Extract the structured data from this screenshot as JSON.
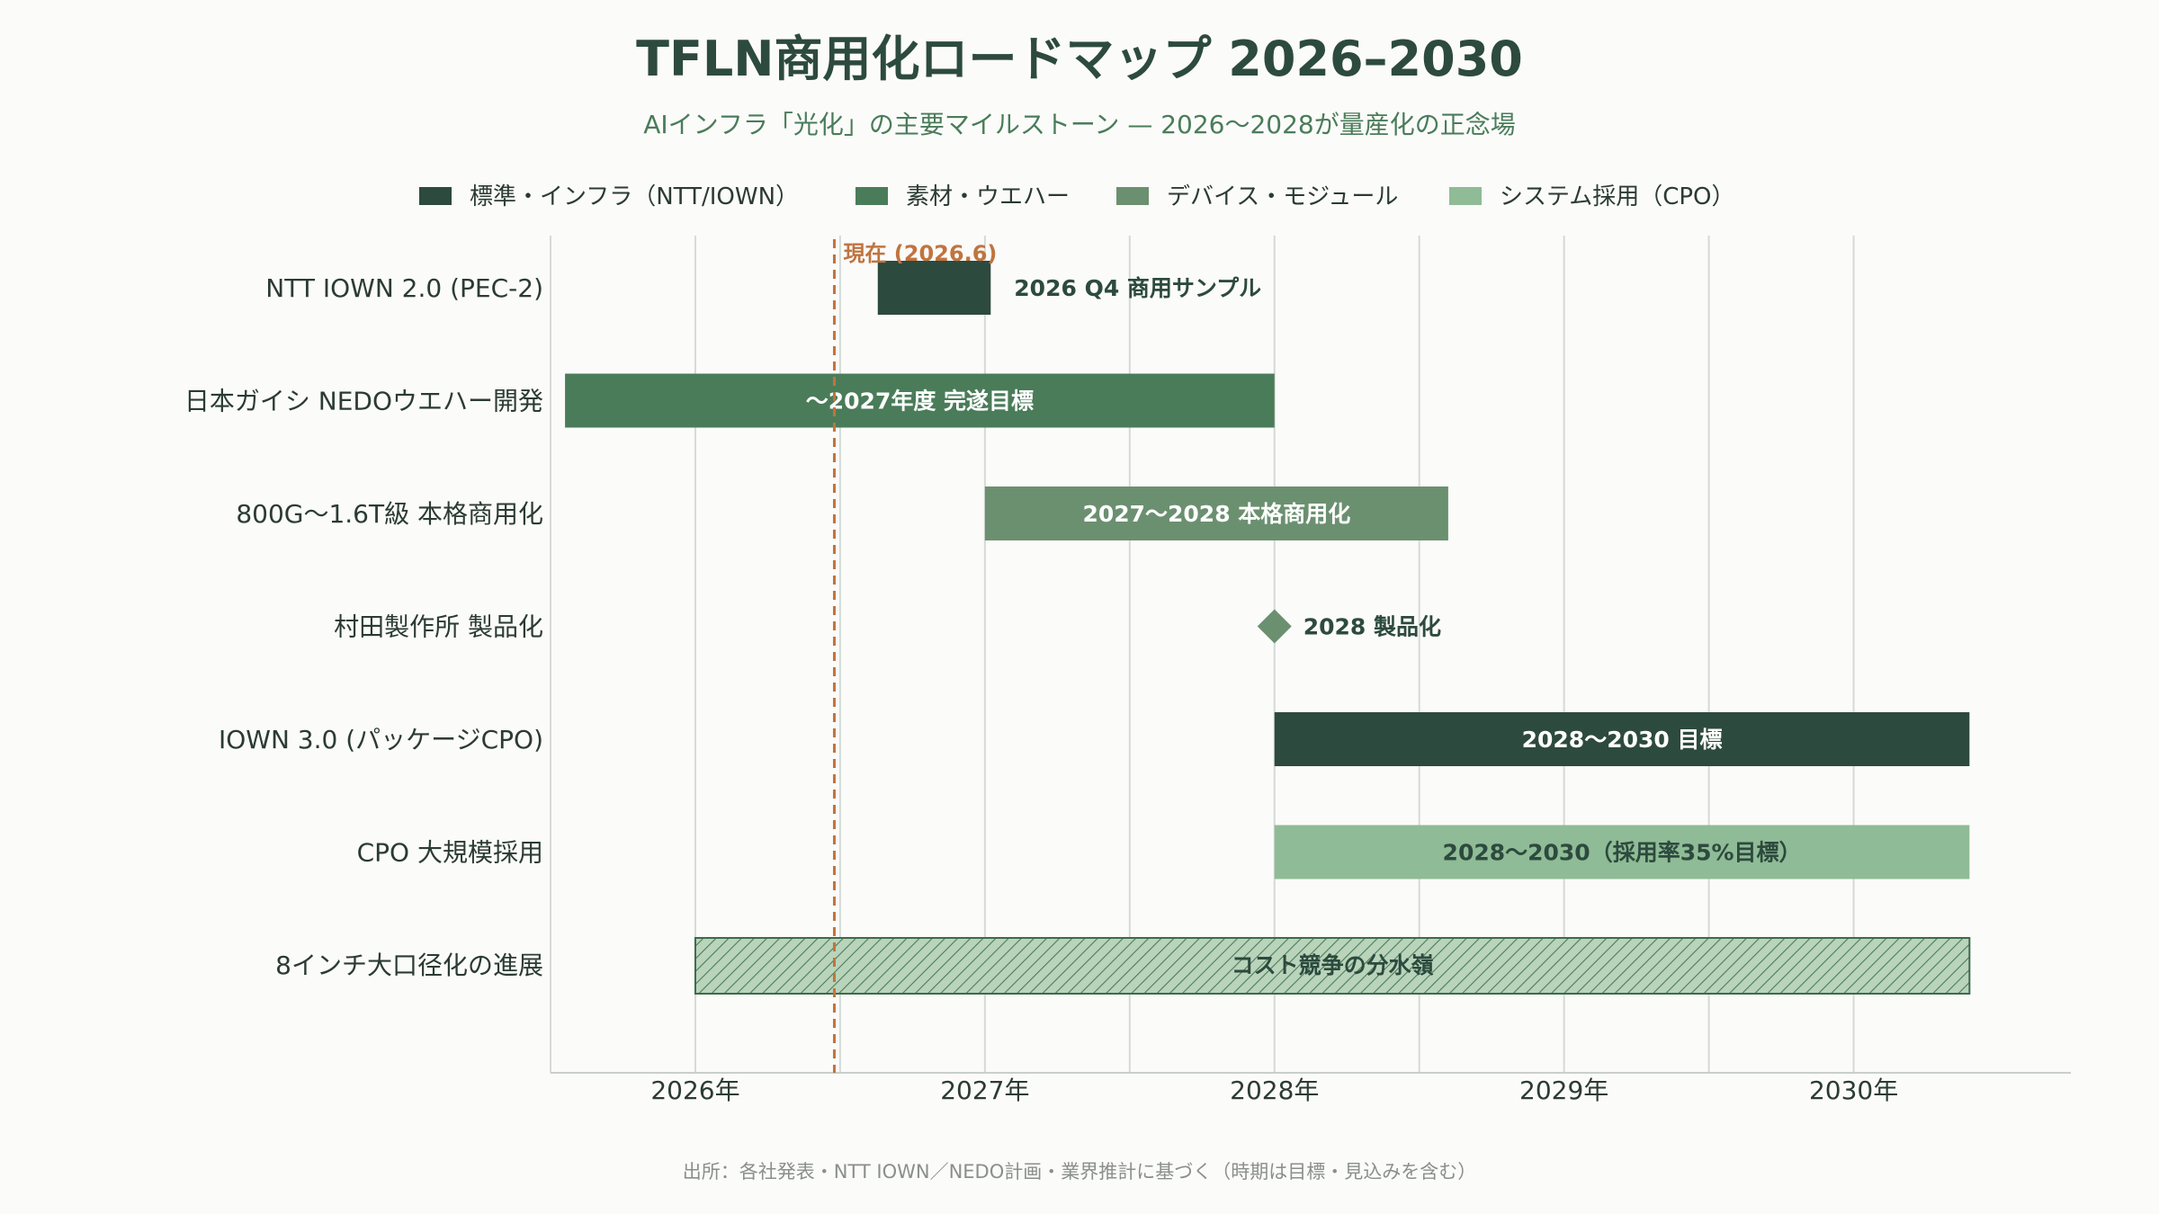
{
  "chart_data": {
    "type": "gantt",
    "title": "TFLN商用化ロードマップ 2026–2030",
    "subtitle": "AIインフラ「光化」の主要マイルストーン — 2026〜2028が量産化の正念場",
    "xlim": [
      2025.5,
      2030.75
    ],
    "x_ticks": [
      {
        "value": 2026,
        "label": "2026年"
      },
      {
        "value": 2027,
        "label": "2027年"
      },
      {
        "value": 2028,
        "label": "2028年"
      },
      {
        "value": 2029,
        "label": "2029年"
      },
      {
        "value": 2030,
        "label": "2030年"
      }
    ],
    "grid": true,
    "legend_position": "top",
    "legend": [
      {
        "name": "標準・インフラ（NTT/IOWN）",
        "color": "#2d4a3e"
      },
      {
        "name": "素材・ウエハー",
        "color": "#4a7c59"
      },
      {
        "name": "デバイス・モジュール",
        "color": "#6b9070"
      },
      {
        "name": "システム採用（CPO）",
        "color": "#8fbb96"
      }
    ],
    "current_marker": {
      "value": 2026.48,
      "label": "現在 (2026.6)",
      "color": "#c0743f"
    },
    "tasks": [
      {
        "category": "NTT IOWN 2.0 (PEC-2)",
        "start": 2026.63,
        "end": 2027.02,
        "kind": "bar",
        "color": "#2d4a3e",
        "label": "2026 Q4 商用サンプル",
        "label_position": "outside",
        "label_color": "#2d4a3e"
      },
      {
        "category": "日本ガイシ NEDOウエハー開発",
        "start": 2025.55,
        "end": 2028.0,
        "kind": "bar",
        "color": "#4a7c59",
        "label": "〜2027年度 完遂目標",
        "label_position": "inside",
        "label_color": "#ffffff"
      },
      {
        "category": "800G〜1.6T級 本格商用化",
        "start": 2027.0,
        "end": 2028.6,
        "kind": "bar",
        "color": "#6b9070",
        "label": "2027〜2028 本格商用化",
        "label_position": "inside",
        "label_color": "#ffffff"
      },
      {
        "category": "村田製作所 製品化",
        "start": 2028.0,
        "end": 2028.0,
        "kind": "milestone",
        "color": "#6b9070",
        "label": "2028 製品化",
        "label_position": "outside",
        "label_color": "#2d4a3e"
      },
      {
        "category": "IOWN 3.0 (パッケージCPO)",
        "start": 2028.0,
        "end": 2030.4,
        "kind": "bar",
        "color": "#2d4a3e",
        "label": "2028〜2030 目標",
        "label_position": "inside",
        "label_color": "#ffffff"
      },
      {
        "category": "CPO 大規模採用",
        "start": 2028.0,
        "end": 2030.4,
        "kind": "bar",
        "color": "#8fbb96",
        "label": "2028〜2030（採用率35%目標）",
        "label_position": "inside",
        "label_color": "#2d4a3e"
      },
      {
        "category": "8インチ大口径化の進展",
        "start": 2026.0,
        "end": 2030.4,
        "kind": "hatched",
        "color": "#a8c9ab",
        "label": "コスト競争の分水嶺",
        "label_position": "inside",
        "label_color": "#2d4a3e"
      }
    ],
    "source": "出所：各社発表・NTT IOWN／NEDO計画・業界推計に基づく（時期は目標・見込みを含む）"
  }
}
